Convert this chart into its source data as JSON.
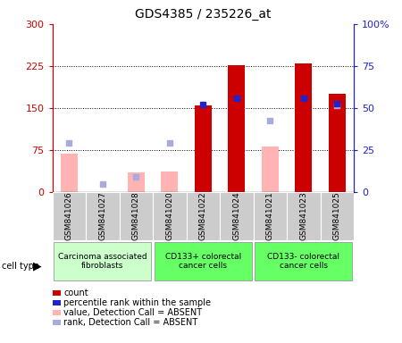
{
  "title": "GDS4385 / 235226_at",
  "samples": [
    "GSM841026",
    "GSM841027",
    "GSM841028",
    "GSM841020",
    "GSM841022",
    "GSM841024",
    "GSM841021",
    "GSM841023",
    "GSM841025"
  ],
  "count_values": [
    0,
    0,
    0,
    0,
    155,
    227,
    0,
    230,
    175
  ],
  "value_absent": [
    68,
    0,
    35,
    37,
    0,
    0,
    82,
    0,
    0
  ],
  "rank_absent_dots": [
    88,
    15,
    27,
    88,
    0,
    0,
    128,
    0,
    155
  ],
  "percentile_rank_dots": [
    0,
    0,
    0,
    0,
    157,
    168,
    0,
    168,
    158
  ],
  "cell_groups": [
    {
      "label": "Carcinoma associated\nfibroblasts",
      "start": 0,
      "end": 3,
      "color": "#ccffcc"
    },
    {
      "label": "CD133+ colorectal\ncancer cells",
      "start": 3,
      "end": 6,
      "color": "#66ff66"
    },
    {
      "label": "CD133- colorectal\ncancer cells",
      "start": 6,
      "end": 9,
      "color": "#66ff66"
    }
  ],
  "ylim_left": [
    0,
    300
  ],
  "ylim_right": [
    0,
    100
  ],
  "yticks_left": [
    0,
    75,
    150,
    225,
    300
  ],
  "yticks_right": [
    0,
    25,
    50,
    75,
    100
  ],
  "ytick_labels_left": [
    "0",
    "75",
    "150",
    "225",
    "300"
  ],
  "ytick_labels_right": [
    "0",
    "25",
    "50",
    "75",
    "100%"
  ],
  "count_color": "#cc0000",
  "value_absent_color": "#ffb3b3",
  "rank_absent_color": "#aaaadd",
  "percentile_color": "#2222cc",
  "left_yaxis_color": "#cc0000",
  "right_yaxis_color": "#2222cc",
  "bg_color": "#ffffff",
  "plot_bg_color": "#ffffff",
  "cell_bg_color": "#cccccc",
  "legend_items": [
    {
      "label": "count",
      "color": "#cc0000"
    },
    {
      "label": "percentile rank within the sample",
      "color": "#2222cc"
    },
    {
      "label": "value, Detection Call = ABSENT",
      "color": "#ffb3b3"
    },
    {
      "label": "rank, Detection Call = ABSENT",
      "color": "#aaaadd"
    }
  ]
}
